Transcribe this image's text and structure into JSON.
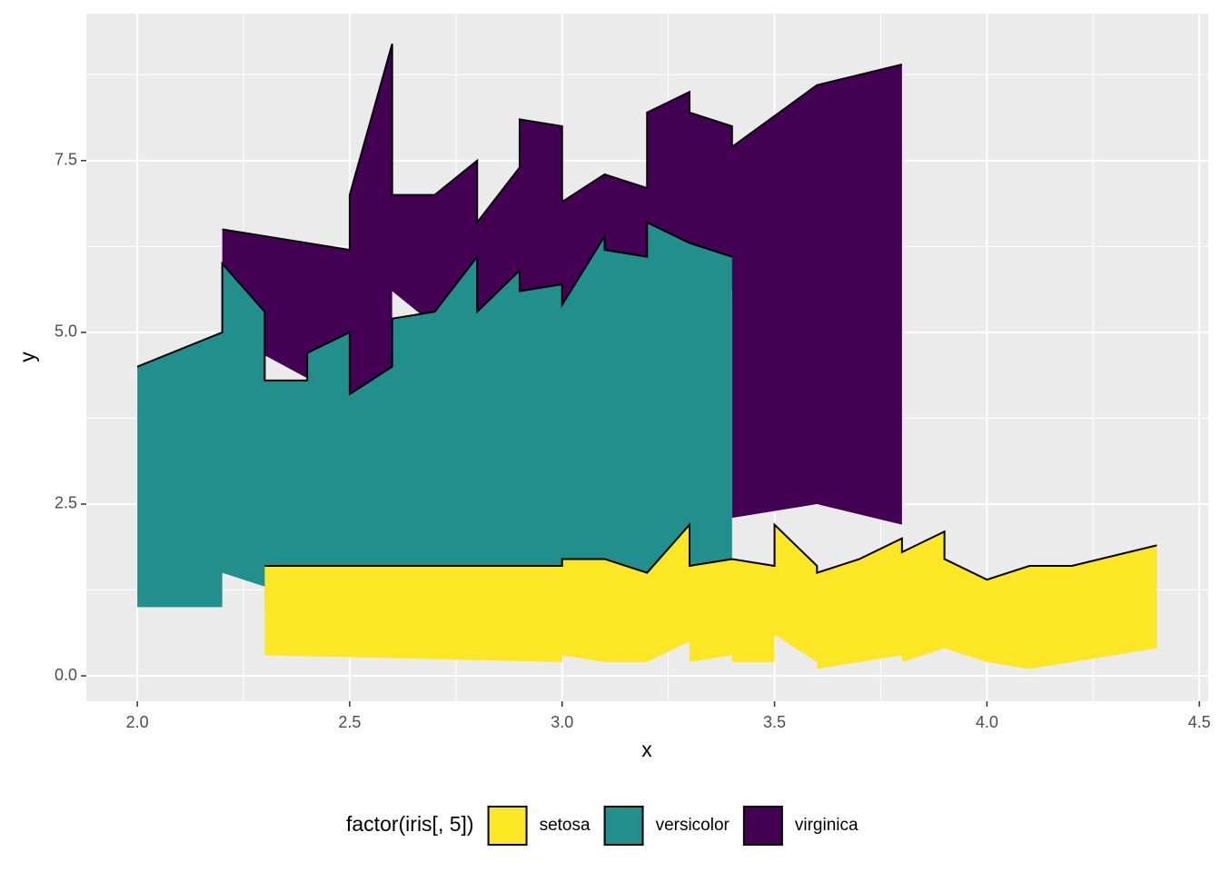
{
  "chart_data": {
    "type": "ribbon",
    "x_label": "x",
    "y_label": "y",
    "xlim": [
      1.88,
      4.521
    ],
    "ylim": [
      -0.37,
      9.64
    ],
    "xticks": [
      {
        "value": 2.0,
        "label": "2.0"
      },
      2.5,
      {
        "value": 3.0,
        "label": "3.0"
      },
      3.5,
      {
        "value": 4.0,
        "label": "4.0"
      },
      4.5
    ],
    "yticks": [
      {
        "value": 0,
        "label": "0.0"
      },
      2.5,
      {
        "value": 5,
        "label": "5.0"
      },
      7.5
    ],
    "x_minor_ticks": [
      2.25,
      2.75,
      3.25,
      3.75,
      4.25
    ],
    "y_minor_ticks": [
      1.25,
      3.75,
      6.25,
      8.75
    ],
    "grid": true,
    "legend_title": "factor(iris[, 5])",
    "legend_position": "bottom",
    "series": [
      {
        "name": "setosa",
        "color": "#fde725",
        "x": [
          2.3,
          3.0,
          3.0,
          3.1,
          3.2,
          3.3,
          3.3,
          3.4,
          3.4,
          3.5,
          3.5,
          3.6,
          3.6,
          3.7,
          3.8,
          3.8,
          3.9,
          3.9,
          4.0,
          4.1,
          4.2,
          4.4
        ],
        "ymin": [
          0.3,
          0.2,
          0.3,
          0.2,
          0.2,
          0.5,
          0.2,
          0.3,
          0.2,
          0.2,
          0.6,
          0.2,
          0.1,
          0.2,
          0.3,
          0.2,
          0.4,
          0.4,
          0.2,
          0.1,
          0.2,
          0.4
        ],
        "ymax": [
          1.6,
          1.6,
          1.7,
          1.7,
          1.5,
          2.2,
          1.6,
          1.7,
          1.7,
          1.6,
          2.2,
          1.6,
          1.5,
          1.7,
          2.0,
          1.8,
          2.1,
          1.7,
          1.4,
          1.6,
          1.6,
          1.9
        ]
      },
      {
        "name": "versicolor",
        "color": "#21908c",
        "x": [
          2.0,
          2.2,
          2.2,
          2.3,
          2.3,
          2.4,
          2.4,
          2.5,
          2.5,
          2.6,
          2.6,
          2.7,
          2.8,
          2.8,
          2.9,
          2.9,
          3.0,
          3.0,
          3.1,
          3.1,
          3.2,
          3.2,
          3.3,
          3.4
        ],
        "ymin": [
          1.0,
          1.0,
          1.5,
          1.3,
          1.0,
          1.0,
          1.1,
          1.1,
          1.2,
          1.2,
          1.2,
          1.2,
          1.3,
          1.3,
          1.3,
          1.3,
          1.4,
          1.4,
          1.5,
          1.5,
          1.5,
          1.5,
          1.6,
          1.6
        ],
        "ymax": [
          4.5,
          5.0,
          6.0,
          5.3,
          4.3,
          4.3,
          4.7,
          5.0,
          4.1,
          4.5,
          5.2,
          5.3,
          6.1,
          5.3,
          5.9,
          5.6,
          5.7,
          5.4,
          6.4,
          6.2,
          6.1,
          6.6,
          6.3,
          6.1
        ]
      },
      {
        "name": "virginica",
        "color": "#440154",
        "x": [
          2.2,
          2.5,
          2.5,
          2.6,
          2.6,
          2.7,
          2.8,
          2.8,
          2.9,
          2.9,
          3.0,
          3.0,
          3.1,
          3.2,
          3.2,
          3.3,
          3.3,
          3.4,
          3.4,
          3.6,
          3.8
        ],
        "ymin": [
          5.0,
          4.0,
          4.0,
          4.5,
          5.6,
          5.1,
          5.6,
          4.9,
          4.9,
          5.0,
          4.9,
          5.0,
          5.6,
          5.7,
          5.9,
          5.6,
          5.7,
          5.6,
          2.3,
          2.5,
          2.2
        ],
        "ymax": [
          6.5,
          6.2,
          7.0,
          9.2,
          7.0,
          7.0,
          7.5,
          6.6,
          7.4,
          8.1,
          8.0,
          6.9,
          7.3,
          7.1,
          8.2,
          8.5,
          8.2,
          8.0,
          7.7,
          8.6,
          8.9
        ]
      }
    ]
  }
}
